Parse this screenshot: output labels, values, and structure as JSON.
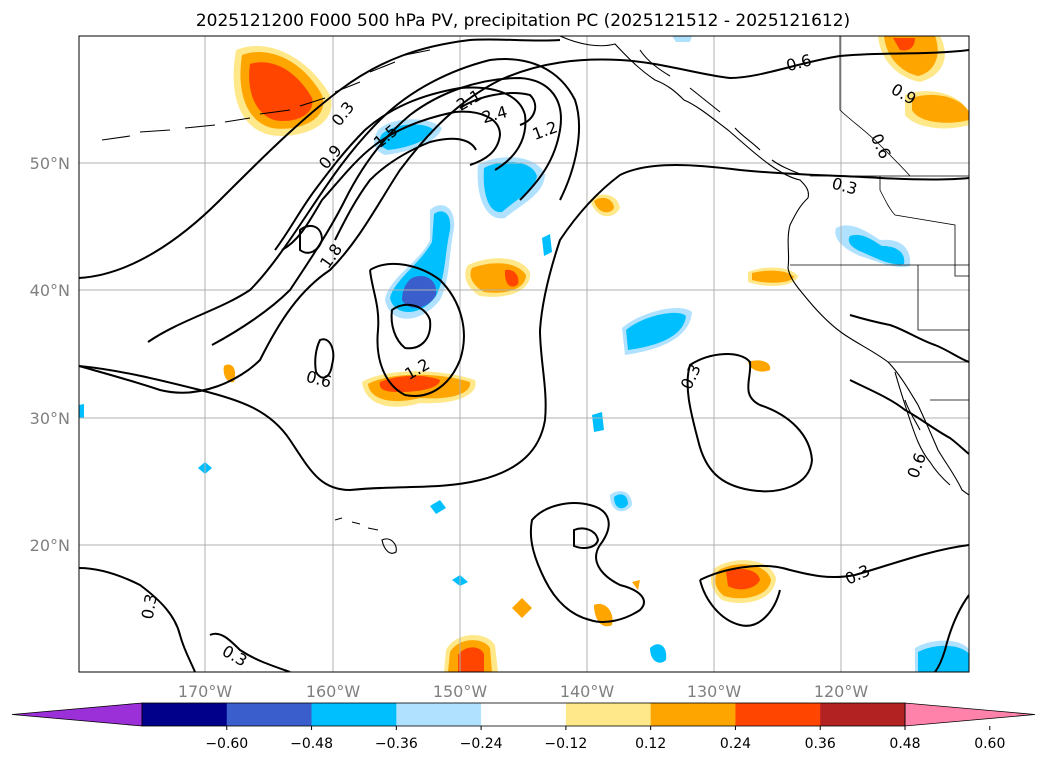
{
  "title": "2025121200 F000 500 hPa PV, precipitation PC (2025121512 - 2025121612)",
  "lat_labels": [
    "50°N",
    "40°N",
    "30°N",
    "20°N"
  ],
  "lon_labels": [
    "170°W",
    "160°W",
    "150°W",
    "140°W",
    "130°W",
    "120°W"
  ],
  "colorbar": {
    "tick_labels": [
      "−0.60",
      "−0.48",
      "−0.36",
      "−0.24",
      "−0.12",
      "0.12",
      "0.24",
      "0.36",
      "0.48",
      "0.60"
    ],
    "colors": [
      "#9b30d9",
      "#00008b",
      "#3a5fcd",
      "#00bfff",
      "#b0e2ff",
      "#ffffff",
      "#ffe88a",
      "#ffa500",
      "#ff4500",
      "#b22222",
      "#ff82ab"
    ]
  },
  "contour_labels": [
    "0.3",
    "0.6",
    "0.9",
    "1.2",
    "1.5",
    "1.8",
    "2.1",
    "2.4",
    "0.6",
    "1.2",
    "0.3",
    "0.6",
    "0.9",
    "0.3",
    "0.3",
    "0.3",
    "0.6",
    "0.3"
  ],
  "colors": {
    "pos_light": "#ffe88a",
    "pos_mid": "#ffa500",
    "pos_strong": "#ff4500",
    "neg_light": "#b0e2ff",
    "neg_mid": "#00bfff",
    "neg_strong": "#3a5fcd"
  }
}
